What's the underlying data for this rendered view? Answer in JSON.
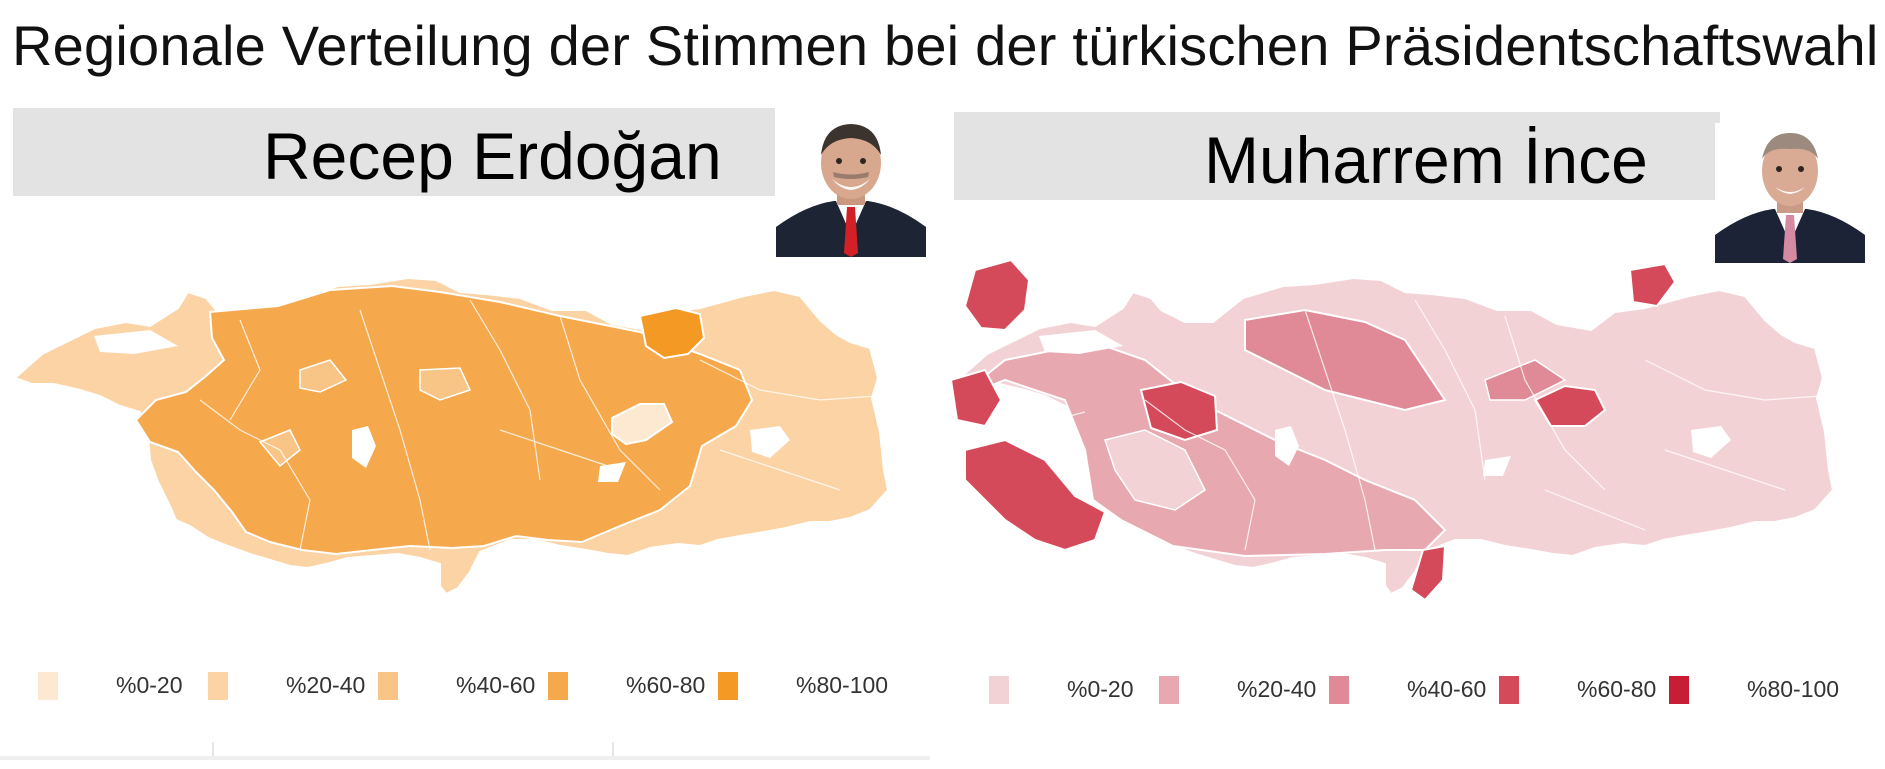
{
  "title": "Regionale Verteilung der Stimmen bei der türkischen Präsidentschaftswahl",
  "panels": [
    {
      "candidate": "Recep Erdoğan",
      "portrait_icon": "person-portrait-icon",
      "tie_color": "#d31f26",
      "scale_colors": [
        "#fde8d2",
        "#fbd3a4",
        "#f9c587",
        "#f6a84c",
        "#f49a24"
      ],
      "legend": [
        "%0-20",
        "%20-40",
        "%40-60",
        "%60-80",
        "%80-100"
      ]
    },
    {
      "candidate": "Muharrem İnce",
      "portrait_icon": "person-portrait-icon",
      "tie_color": "#d48aa0",
      "scale_colors": [
        "#f3d2d6",
        "#e8a8b0",
        "#df8a96",
        "#d44a5a",
        "#c81e35"
      ],
      "legend": [
        "%0-20",
        "%20-40",
        "%40-60",
        "%60-80",
        "%80-100"
      ]
    }
  ]
}
